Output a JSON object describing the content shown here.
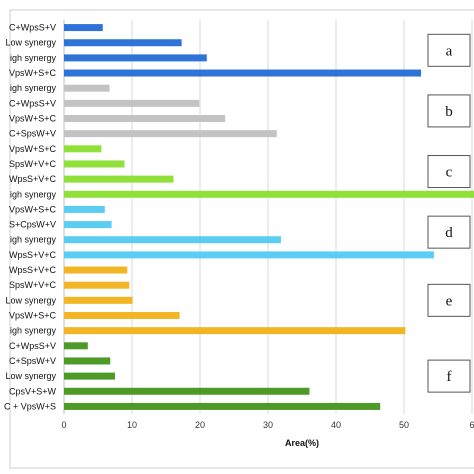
{
  "chart_data": {
    "type": "bar",
    "orientation": "horizontal",
    "categories": [
      "C+WpsS+V",
      "Low synergy",
      "igh synergy",
      "VpsW+S+C",
      "igh synergy",
      "C+WpsS+V",
      "VpsW+S+C",
      "C+SpsW+V",
      "VpsW+S+C",
      "SpsW+V+C",
      "WpsS+V+C",
      "igh synergy",
      "VpsW+S+C",
      "S+CpsW+V",
      "igh synergy",
      "WpsS+V+C",
      "WpsS+V+C",
      "SpsW+V+C",
      "Low synergy",
      "VpsW+S+C",
      "igh synergy",
      "C+WpsS+V",
      "C+SpsW+V",
      "Low synergy",
      "CpsV+S+W",
      "C + VpsW+S"
    ],
    "values": [
      5.7,
      17.3,
      21,
      52.5,
      6.7,
      19.9,
      23.7,
      31.3,
      5.5,
      8.9,
      16.1,
      60.5,
      6,
      7,
      31.9,
      54.4,
      9.3,
      9.6,
      10.1,
      17,
      50.2,
      3.5,
      6.8,
      7.5,
      36.1,
      46.5
    ],
    "groups": [
      {
        "label": "a",
        "count": 4,
        "color": "#2f73d9"
      },
      {
        "label": "b",
        "count": 4,
        "color": "#c3c3c3"
      },
      {
        "label": "c",
        "count": 4,
        "color": "#8fe038"
      },
      {
        "label": "d",
        "count": 4,
        "color": "#5bcdf2"
      },
      {
        "label": "e",
        "count": 5,
        "color": "#f2b526"
      },
      {
        "label": "f",
        "count": 5,
        "color": "#4e9a26"
      }
    ],
    "x_ticks": [
      "0",
      "10",
      "20",
      "30",
      "40",
      "50",
      "6"
    ],
    "xlabel": "Area(%)",
    "xlim": [
      0,
      60
    ],
    "grid": true
  }
}
